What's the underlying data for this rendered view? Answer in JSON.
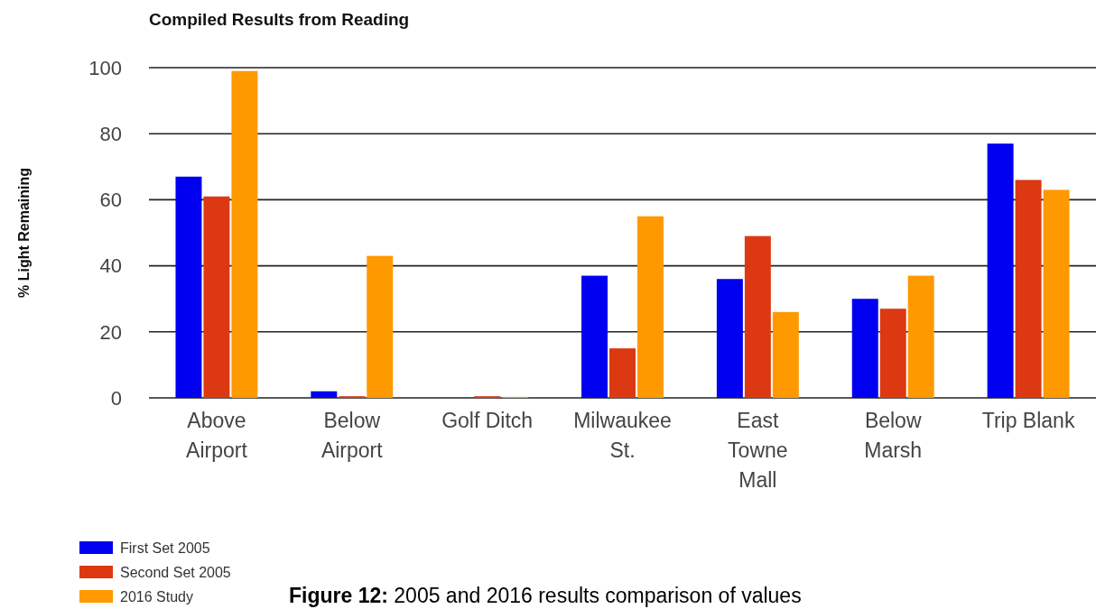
{
  "chart_data": {
    "type": "bar",
    "title": "Compiled Results from Reading",
    "ylabel": "% Light Remaining",
    "categories": [
      "Above Airport",
      "Below Airport",
      "Golf Ditch",
      "Milwaukee St.",
      "East Towne Mall",
      "Below Marsh",
      "Trip Blank"
    ],
    "series": [
      {
        "name": "First Set 2005",
        "color": "#0000f0",
        "values": [
          67,
          2,
          null,
          37,
          36,
          30,
          77
        ]
      },
      {
        "name": "Second Set 2005",
        "color": "#dc3912",
        "values": [
          61,
          0.5,
          0.5,
          15,
          49,
          27,
          66
        ]
      },
      {
        "name": "2016 Study",
        "color": "#ff9900",
        "values": [
          99,
          43,
          0.3,
          55,
          26,
          37,
          63
        ]
      }
    ],
    "ylim": [
      0,
      100
    ],
    "yticks": [
      0,
      20,
      40,
      60,
      80,
      100
    ],
    "grid": "y",
    "legend": "bottom left",
    "annotations": [
      "Figure 12: 2005 and 2016 results comparison of values"
    ]
  }
}
